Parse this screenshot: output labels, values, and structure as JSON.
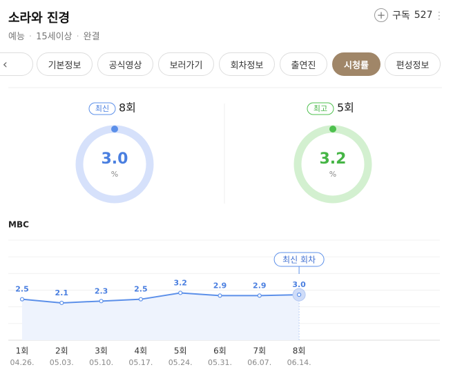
{
  "header": {
    "title": "소라와 진경",
    "meta": [
      "예능",
      "15세이상",
      "완결"
    ],
    "subscribe_label": "구독",
    "subscribe_count": "527"
  },
  "tabs": {
    "items": [
      "기본정보",
      "공식영상",
      "보러가기",
      "회차정보",
      "출연진",
      "시청률",
      "편성정보"
    ],
    "active": 5
  },
  "summary": [
    {
      "badge": "최신",
      "episode": "8회",
      "value": "3.0",
      "unit": "%"
    },
    {
      "badge": "최고",
      "episode": "5회",
      "value": "3.2",
      "unit": "%"
    }
  ],
  "chart_data": {
    "type": "line",
    "title": "MBC",
    "categories": [
      "1회",
      "2회",
      "3회",
      "4회",
      "5회",
      "6회",
      "7회",
      "8회"
    ],
    "dates": [
      "04.26.",
      "05.03.",
      "05.10.",
      "05.17.",
      "05.24.",
      "05.31.",
      "06.07.",
      "06.14."
    ],
    "values": [
      2.5,
      2.1,
      2.3,
      2.5,
      3.2,
      2.9,
      2.9,
      3.0
    ],
    "value_labels": [
      "2.5",
      "2.1",
      "2.3",
      "2.5",
      "3.2",
      "2.9",
      "2.9",
      "3.0"
    ],
    "annotation": "최신 회차",
    "color": "#5b8fe9",
    "ylim": [
      -2,
      9
    ]
  }
}
